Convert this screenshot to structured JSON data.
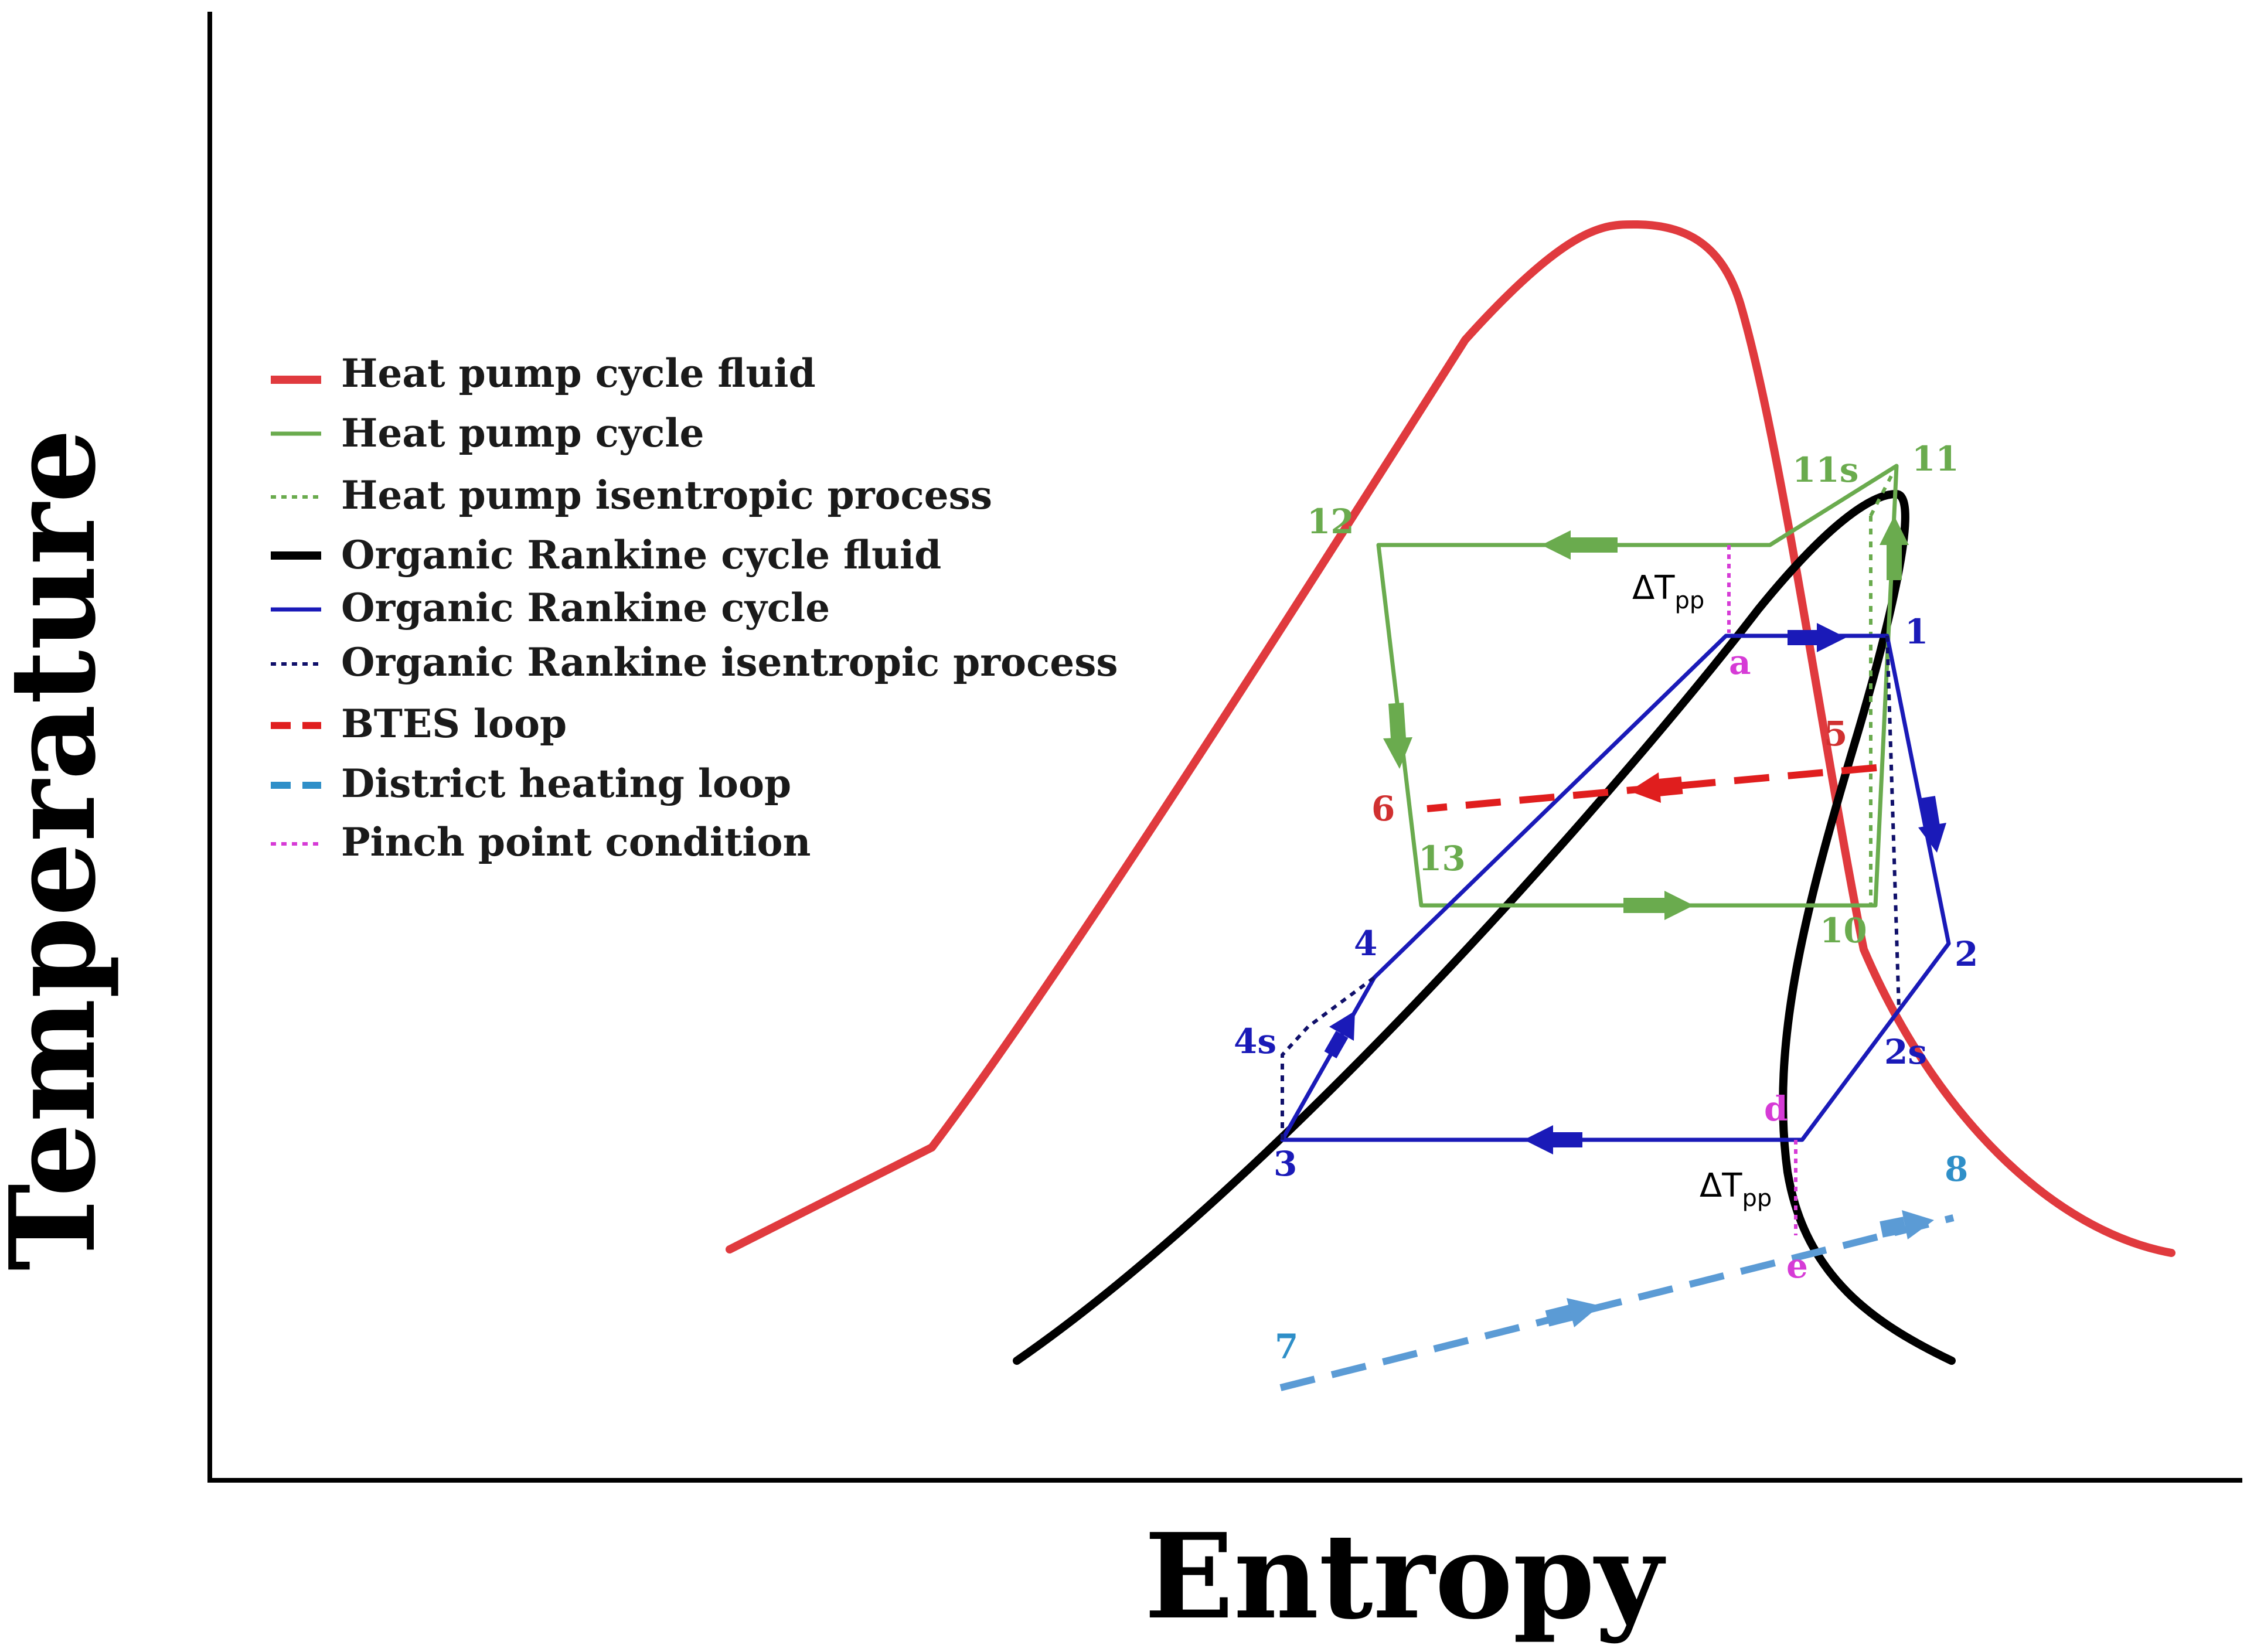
{
  "axes": {
    "x_title": "Entropy",
    "y_title": "Temperature"
  },
  "colors": {
    "heat_pump_fluid": "#e03a3e",
    "heat_pump_cycle": "#6aab4e",
    "orc_fluid": "#000000",
    "orc_cycle": "#1a1ab8",
    "orc_isentropic": "#10106a",
    "btes_loop": "#e01e1e",
    "district_heating": "#5b9bd5",
    "pinch_point": "#d63bd6",
    "label_blue": "#1a1ab8",
    "label_green": "#6aab4e",
    "label_red": "#d03030",
    "label_cyan": "#2f8fc8",
    "label_magenta": "#d63bd6"
  },
  "legend": [
    {
      "label": "Heat pump cycle fluid",
      "style": "solid-thick",
      "color_key": "heat_pump_fluid"
    },
    {
      "label": "Heat pump cycle",
      "style": "solid",
      "color_key": "heat_pump_cycle"
    },
    {
      "label": "Heat pump isentropic process",
      "style": "dotted",
      "color_key": "heat_pump_cycle"
    },
    {
      "label": "Organic Rankine cycle fluid",
      "style": "solid-thick",
      "color_key": "orc_fluid"
    },
    {
      "label": "Organic Rankine cycle",
      "style": "solid",
      "color_key": "orc_cycle"
    },
    {
      "label": "Organic Rankine isentropic process",
      "style": "dotted",
      "color_key": "orc_isentropic"
    },
    {
      "label": "BTES loop",
      "style": "dashed-thick",
      "color_key": "btes_loop"
    },
    {
      "label": "District heating loop",
      "style": "dashed-thick",
      "color_key": "district_heating"
    },
    {
      "label": "Pinch point condition",
      "style": "dotted",
      "color_key": "pinch_point"
    }
  ],
  "state_points": {
    "p1": "1",
    "p2": "2",
    "p2s": "2s",
    "p3": "3",
    "p4": "4",
    "p4s": "4s",
    "p5": "5",
    "p6": "6",
    "p7": "7",
    "p8": "8",
    "p10": "10",
    "p11": "11",
    "p11s": "11s",
    "p12": "12",
    "p13": "13",
    "pa": "a",
    "pd": "d",
    "pe": "e"
  },
  "pinch": {
    "symbol": "ΔT",
    "subscript": "pp"
  }
}
